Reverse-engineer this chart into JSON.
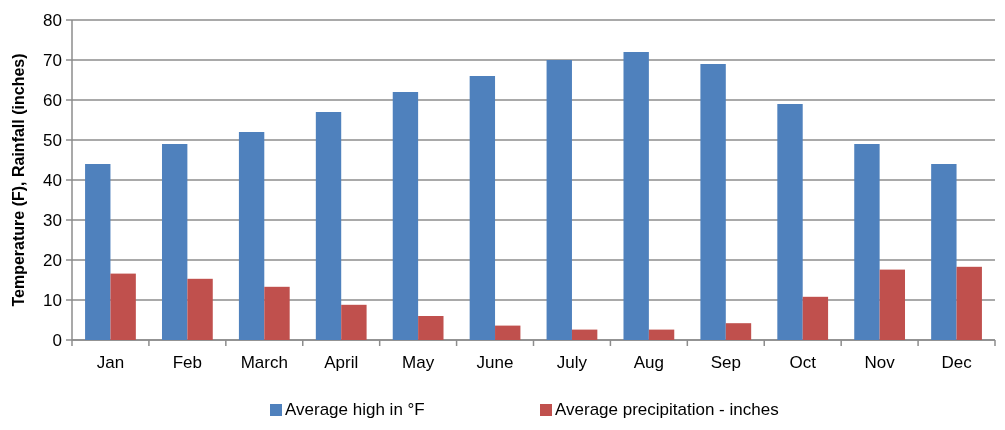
{
  "chart_data": {
    "type": "bar",
    "ylabel": "Temperature (F), Rainfall (inches)",
    "categories": [
      "Jan",
      "Feb",
      "March",
      "April",
      "May",
      "June",
      "July",
      "Aug",
      "Sep",
      "Oct",
      "Nov",
      "Dec"
    ],
    "series": [
      {
        "name": "Average high in °F",
        "color": "#4f81bd",
        "values": [
          44,
          49,
          52,
          57,
          62,
          66,
          70,
          72,
          69,
          59,
          49,
          44
        ]
      },
      {
        "name": "Average precipitation - inches",
        "color": "#c0504d",
        "values": [
          16.6,
          15.3,
          13.3,
          8.8,
          6.0,
          3.6,
          2.6,
          2.6,
          4.2,
          10.8,
          17.6,
          18.3
        ]
      }
    ],
    "ylim": [
      0,
      80
    ],
    "yticks": [
      0,
      10,
      20,
      30,
      40,
      50,
      60,
      70,
      80
    ],
    "grid": "y",
    "legend": "bottom"
  }
}
